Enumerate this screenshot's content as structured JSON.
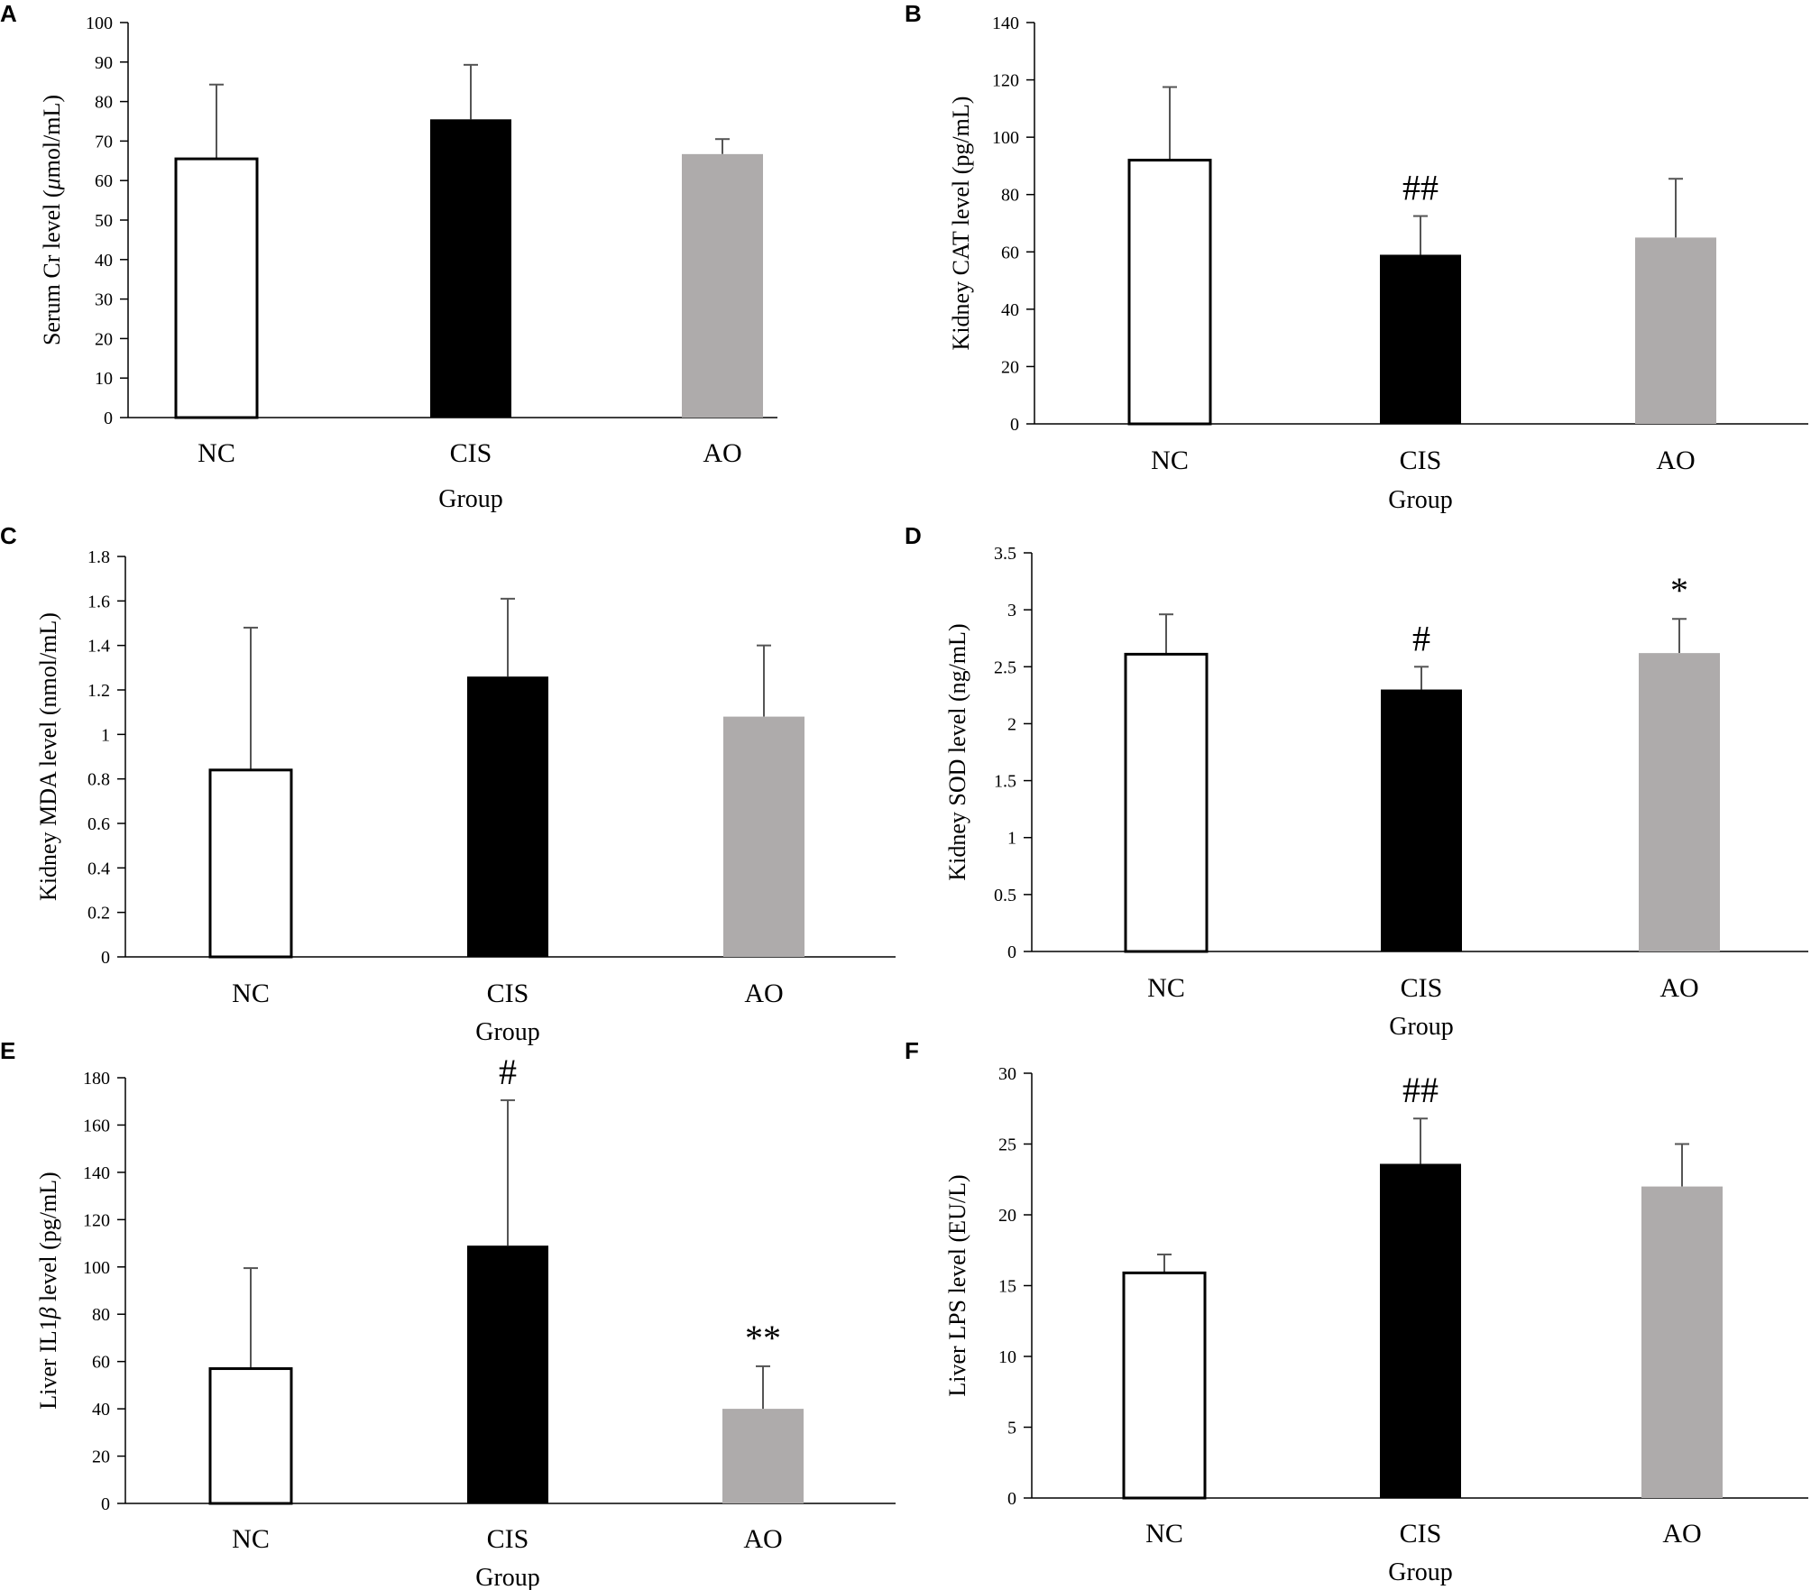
{
  "colors": {
    "NC": "#ffffff",
    "CIS": "#000000",
    "AO": "#aeabab",
    "axis": "#000000",
    "error": "#555555"
  },
  "chart_data": [
    {
      "panel": "A",
      "type": "bar",
      "categories": [
        "NC",
        "CIS",
        "AO"
      ],
      "values": [
        65.5,
        75.5,
        66.7
      ],
      "errors": [
        18.8,
        13.8,
        3.8
      ],
      "annotations": [
        "",
        "",
        ""
      ],
      "ylim": [
        0,
        100
      ],
      "yticks": [
        "0",
        "10",
        "20",
        "30",
        "40",
        "50",
        "60",
        "70",
        "80",
        "90",
        "100"
      ],
      "ylabel_pre": "Serum Cr level (",
      "ylabel_greek": "μ",
      "ylabel_post": "mol/mL)",
      "xlabel": "Group"
    },
    {
      "panel": "B",
      "type": "bar",
      "categories": [
        "NC",
        "CIS",
        "AO"
      ],
      "values": [
        92,
        59,
        65
      ],
      "errors": [
        25.5,
        13.5,
        20.5
      ],
      "annotations": [
        "",
        "##",
        ""
      ],
      "ylim": [
        0,
        140
      ],
      "yticks": [
        "0",
        "20",
        "40",
        "60",
        "80",
        "100",
        "120",
        "140"
      ],
      "ylabel_pre": "Kidney CAT level (pg/mL)",
      "ylabel_greek": "",
      "ylabel_post": "",
      "xlabel": "Group"
    },
    {
      "panel": "C",
      "type": "bar",
      "categories": [
        "NC",
        "CIS",
        "AO"
      ],
      "values": [
        0.84,
        1.26,
        1.08
      ],
      "errors": [
        0.64,
        0.35,
        0.32
      ],
      "annotations": [
        "",
        "",
        ""
      ],
      "ylim": [
        0,
        1.8
      ],
      "yticks": [
        "0",
        "0.2",
        "0.4",
        "0.6",
        "0.8",
        "1",
        "1.2",
        "1.4",
        "1.6",
        "1.8"
      ],
      "ylabel_pre": "Kidney MDA level (nmol/mL)",
      "ylabel_greek": "",
      "ylabel_post": "",
      "xlabel": "Group"
    },
    {
      "panel": "D",
      "type": "bar",
      "categories": [
        "NC",
        "CIS",
        "AO"
      ],
      "values": [
        2.61,
        2.3,
        2.62
      ],
      "errors": [
        0.35,
        0.2,
        0.3
      ],
      "annotations": [
        "",
        "#",
        "*"
      ],
      "ylim": [
        0,
        3.5
      ],
      "yticks": [
        "0",
        "0.5",
        "1",
        "1.5",
        "2",
        "2.5",
        "3",
        "3.5"
      ],
      "ylabel_pre": "Kidney SOD level (ng/mL)",
      "ylabel_greek": "",
      "ylabel_post": "",
      "xlabel": "Group"
    },
    {
      "panel": "E",
      "type": "bar",
      "categories": [
        "NC",
        "CIS",
        "AO"
      ],
      "values": [
        57,
        109,
        40
      ],
      "errors": [
        42.5,
        61.5,
        18
      ],
      "annotations": [
        "",
        "#",
        "**"
      ],
      "ylim": [
        0,
        180
      ],
      "yticks": [
        "0",
        "20",
        "40",
        "60",
        "80",
        "100",
        "120",
        "140",
        "160",
        "180"
      ],
      "ylabel_pre": "Liver IL1",
      "ylabel_greek": "β",
      "ylabel_post": " level (pg/mL)",
      "xlabel": "Group"
    },
    {
      "panel": "F",
      "type": "bar",
      "categories": [
        "NC",
        "CIS",
        "AO"
      ],
      "values": [
        15.9,
        23.6,
        22
      ],
      "errors": [
        1.3,
        3.2,
        3
      ],
      "annotations": [
        "",
        "##",
        ""
      ],
      "ylim": [
        0,
        30
      ],
      "yticks": [
        "0",
        "5",
        "10",
        "15",
        "20",
        "25",
        "30"
      ],
      "ylabel_pre": "Liver LPS level (EU/L)",
      "ylabel_greek": "",
      "ylabel_post": "",
      "xlabel": "Group"
    }
  ]
}
